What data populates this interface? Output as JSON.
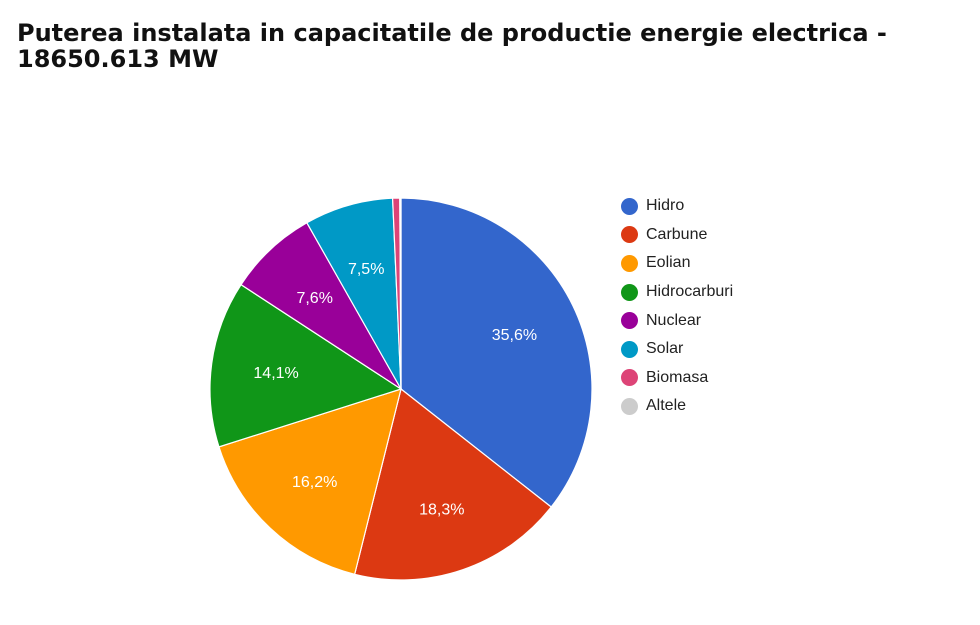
{
  "chart_data": {
    "type": "pie",
    "title": "Puterea instalata in capacitatile de productie energie electrica - 18650.613 MW",
    "slices": [
      {
        "name": "Hidro",
        "value": 35.6,
        "label": "35,6%",
        "color": "#3366cc"
      },
      {
        "name": "Carbune",
        "value": 18.3,
        "label": "18,3%",
        "color": "#dc3912"
      },
      {
        "name": "Eolian",
        "value": 16.2,
        "label": "16,2%",
        "color": "#ff9900"
      },
      {
        "name": "Hidrocarburi",
        "value": 14.1,
        "label": "14,1%",
        "color": "#109618"
      },
      {
        "name": "Nuclear",
        "value": 7.6,
        "label": "7,6%",
        "color": "#990099"
      },
      {
        "name": "Solar",
        "value": 7.5,
        "label": "7,5%",
        "color": "#0099c6"
      },
      {
        "name": "Biomasa",
        "value": 0.6,
        "label": "",
        "color": "#dd4477"
      },
      {
        "name": "Altele",
        "value": 0.1,
        "label": "",
        "color": "#cccccc"
      }
    ],
    "legend_position": "right"
  }
}
